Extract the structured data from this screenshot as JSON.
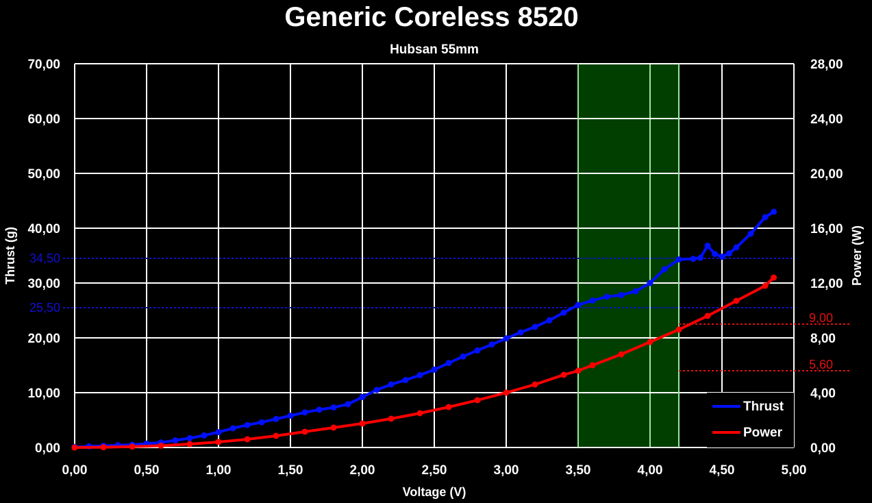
{
  "chart_data": {
    "type": "line",
    "title": "Generic Coreless 8520",
    "subtitle": "Hubsan 55mm",
    "xlabel": "Voltage (V)",
    "ylabel": "Thrust (g)",
    "y2label": "Power (W)",
    "xlim": [
      0,
      5
    ],
    "ylim": [
      0,
      70
    ],
    "y2lim": [
      0,
      28
    ],
    "x_ticks": [
      "0,00",
      "0,50",
      "1,00",
      "1,50",
      "2,00",
      "2,50",
      "3,00",
      "3,50",
      "4,00",
      "4,50",
      "5,00"
    ],
    "y_ticks": [
      "0,00",
      "10,00",
      "20,00",
      "30,00",
      "40,00",
      "50,00",
      "60,00",
      "70,00"
    ],
    "y2_ticks": [
      "0,00",
      "4,00",
      "8,00",
      "12,00",
      "16,00",
      "20,00",
      "24,00",
      "28,00"
    ],
    "grid": true,
    "legend_position": "bottom-right",
    "highlight_region": {
      "x": [
        3.5,
        4.2
      ],
      "color": "#003f00",
      "border": "#9be89b"
    },
    "ref_lines_left": [
      {
        "label": "34,50",
        "value": 34.5,
        "color": "#1010d0"
      },
      {
        "label": "25,50",
        "value": 25.5,
        "color": "#1010d0"
      }
    ],
    "ref_lines_right": [
      {
        "label": "9,00",
        "value": 9.0,
        "color": "#e01010"
      },
      {
        "label": "5,60",
        "value": 5.6,
        "color": "#e01010"
      }
    ],
    "series": [
      {
        "name": "Thrust",
        "axis": "left",
        "color": "#0010ff",
        "x": [
          0.0,
          0.1,
          0.2,
          0.3,
          0.4,
          0.5,
          0.6,
          0.7,
          0.8,
          0.9,
          1.0,
          1.1,
          1.2,
          1.3,
          1.4,
          1.5,
          1.6,
          1.7,
          1.8,
          1.9,
          2.0,
          2.1,
          2.2,
          2.3,
          2.4,
          2.5,
          2.6,
          2.7,
          2.8,
          2.9,
          3.0,
          3.1,
          3.2,
          3.3,
          3.4,
          3.5,
          3.6,
          3.7,
          3.8,
          3.9,
          4.0,
          4.1,
          4.2,
          4.3,
          4.35,
          4.4,
          4.45,
          4.5,
          4.55,
          4.6,
          4.7,
          4.8,
          4.86
        ],
        "values": [
          0.1,
          0.2,
          0.3,
          0.4,
          0.5,
          0.7,
          0.9,
          1.3,
          1.7,
          2.2,
          2.8,
          3.5,
          4.1,
          4.6,
          5.2,
          5.8,
          6.4,
          6.9,
          7.3,
          7.9,
          9.2,
          10.5,
          11.5,
          12.3,
          13.2,
          14.2,
          15.4,
          16.6,
          17.7,
          18.8,
          19.9,
          21.0,
          22.0,
          23.2,
          24.6,
          26.0,
          26.8,
          27.5,
          27.8,
          28.5,
          30.0,
          32.5,
          34.3,
          34.4,
          34.6,
          36.8,
          35.3,
          34.8,
          35.4,
          36.5,
          39.0,
          42.0,
          43.0
        ]
      },
      {
        "name": "Power",
        "axis": "right",
        "color": "#ff0000",
        "x": [
          0.0,
          0.2,
          0.4,
          0.6,
          0.8,
          1.0,
          1.2,
          1.4,
          1.6,
          1.8,
          2.0,
          2.2,
          2.4,
          2.6,
          2.8,
          3.0,
          3.2,
          3.4,
          3.5,
          3.6,
          3.8,
          4.0,
          4.2,
          4.4,
          4.6,
          4.8,
          4.86
        ],
        "values": [
          0.0,
          0.02,
          0.06,
          0.13,
          0.25,
          0.4,
          0.6,
          0.85,
          1.15,
          1.45,
          1.75,
          2.1,
          2.5,
          2.95,
          3.45,
          4.0,
          4.6,
          5.3,
          5.6,
          6.0,
          6.8,
          7.7,
          8.6,
          9.6,
          10.7,
          11.8,
          12.4
        ]
      }
    ]
  }
}
